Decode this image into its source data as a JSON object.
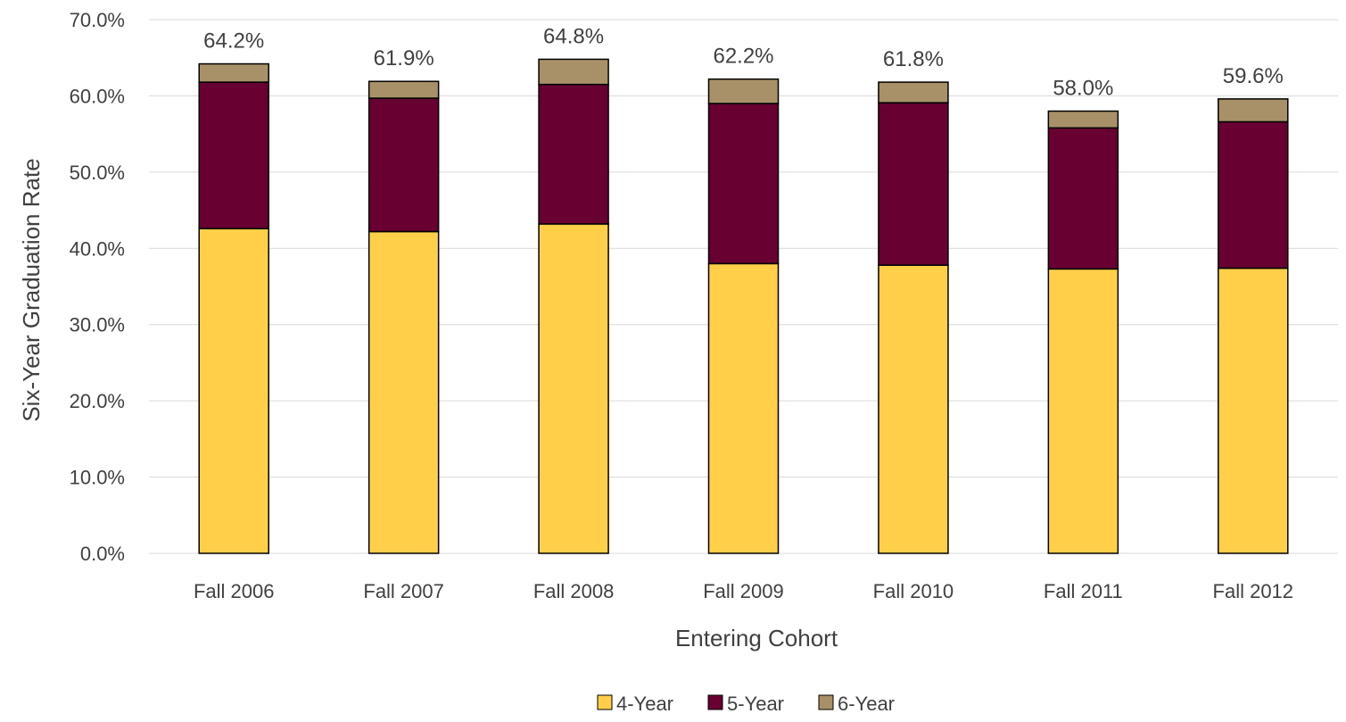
{
  "chart_data": {
    "type": "bar",
    "stacked": true,
    "categories": [
      "Fall 2006",
      "Fall 2007",
      "Fall 2008",
      "Fall 2009",
      "Fall 2010",
      "Fall 2011",
      "Fall 2012"
    ],
    "series": [
      {
        "name": "4-Year",
        "color": "#FFCF4A",
        "values": [
          42.6,
          42.2,
          43.2,
          38.0,
          37.8,
          37.3,
          37.4
        ]
      },
      {
        "name": "5-Year",
        "color": "#680031",
        "values": [
          19.2,
          17.5,
          18.3,
          21.0,
          21.3,
          18.5,
          19.2
        ]
      },
      {
        "name": "6-Year",
        "color": "#A89069",
        "values": [
          2.4,
          2.2,
          3.3,
          3.2,
          2.7,
          2.2,
          3.0
        ]
      }
    ],
    "totals": [
      64.2,
      61.9,
      64.8,
      62.2,
      61.8,
      58.0,
      59.6
    ],
    "total_labels": [
      "64.2%",
      "61.9%",
      "64.8%",
      "62.2%",
      "61.8%",
      "58.0%",
      "59.6%"
    ],
    "xlabel": "Entering Cohort",
    "ylabel": "Six-Year Graduation Rate",
    "ylim": [
      0,
      70
    ],
    "yticks": [
      0,
      10,
      20,
      30,
      40,
      50,
      60,
      70
    ],
    "ytick_labels": [
      "0.0%",
      "10.0%",
      "20.0%",
      "30.0%",
      "40.0%",
      "50.0%",
      "60.0%",
      "70.0%"
    ],
    "grid": true,
    "legend_position": "bottom"
  }
}
